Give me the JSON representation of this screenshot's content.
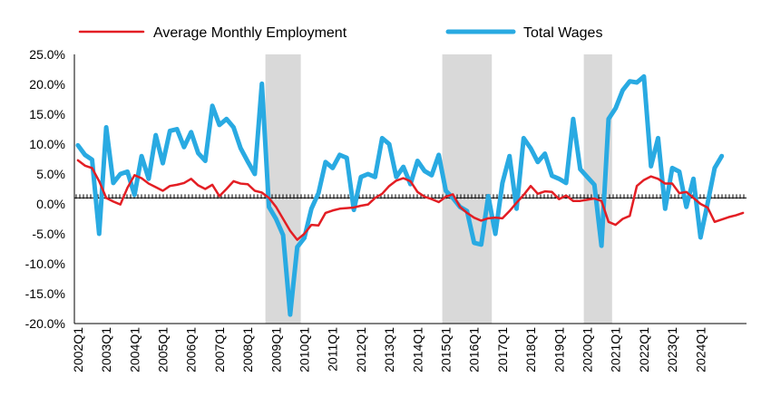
{
  "chart_data": {
    "type": "line",
    "title": "",
    "xlabel": "",
    "ylabel": "",
    "ylim": [
      -20,
      25
    ],
    "yticks": [
      -20,
      -15,
      -10,
      -5,
      0,
      5,
      10,
      15,
      20,
      25
    ],
    "ytick_labels": [
      "-20.0%",
      "-15.0%",
      "-10.0%",
      "-5.0%",
      "0.0%",
      "5.0%",
      "10.0%",
      "15.0%",
      "20.0%",
      "25.0%"
    ],
    "xtick_labels": [
      "2002Q1",
      "2003Q1",
      "2004Q1",
      "2005Q1",
      "2006Q1",
      "2007Q1",
      "2008Q1",
      "2009Q1",
      "2010Q1",
      "2011Q1",
      "2012Q1",
      "2013Q1",
      "2014Q1",
      "2015Q1",
      "2016Q1",
      "2017Q1",
      "2018Q1",
      "2019Q1",
      "2020Q1",
      "2021Q1",
      "2022Q1",
      "2023Q1",
      "2024Q1"
    ],
    "first_quarter": "2002Q1",
    "grid": false,
    "legend_position": "top",
    "reference_line": {
      "value": 1.0,
      "style": "dashed black with tick marks"
    },
    "shaded_periods": [
      {
        "start": "2008Q4",
        "end": "2009Q4"
      },
      {
        "start": "2015Q1",
        "end": "2016Q3"
      },
      {
        "start": "2020Q1",
        "end": "2020Q4"
      }
    ],
    "series": [
      {
        "name": "Average Monthly Employment",
        "color": "#E31E24",
        "values": [
          7.3,
          6.4,
          6.0,
          3.8,
          1.0,
          0.4,
          -0.1,
          2.7,
          4.8,
          4.3,
          3.4,
          2.8,
          2.2,
          3.0,
          3.2,
          3.5,
          4.2,
          3.1,
          2.5,
          3.2,
          1.3,
          2.5,
          3.8,
          3.4,
          3.3,
          2.2,
          1.9,
          1.0,
          -0.5,
          -2.5,
          -4.5,
          -6.0,
          -5.0,
          -3.5,
          -3.6,
          -1.5,
          -1.1,
          -0.8,
          -0.7,
          -0.6,
          -0.3,
          -0.1,
          1.0,
          1.7,
          3.0,
          3.9,
          4.3,
          3.8,
          2.0,
          1.2,
          0.8,
          0.3,
          1.2,
          1.6,
          -0.5,
          -1.5,
          -2.3,
          -2.8,
          -2.4,
          -2.3,
          -2.4,
          -1.2,
          0.2,
          1.5,
          3.0,
          1.7,
          2.1,
          2.0,
          0.8,
          1.4,
          0.5,
          0.5,
          0.7,
          0.9,
          0.5,
          -3.0,
          -3.5,
          -2.5,
          -2.0,
          3.0,
          4.0,
          4.6,
          4.2,
          3.4,
          3.4,
          1.8,
          2.0,
          1.0,
          0.0,
          -0.6,
          -3.0,
          -2.6,
          -2.2,
          -1.9,
          -1.5
        ]
      },
      {
        "name": "Total Wages",
        "color": "#29AAE2",
        "values": [
          9.8,
          8.2,
          7.4,
          -5.0,
          12.8,
          3.5,
          5.0,
          5.4,
          1.5,
          8.0,
          4.2,
          11.5,
          6.8,
          12.2,
          12.5,
          9.5,
          12.0,
          8.5,
          7.2,
          16.4,
          13.2,
          14.2,
          12.8,
          9.3,
          7.1,
          5.0,
          20.1,
          -0.5,
          -2.5,
          -5.2,
          -18.5,
          -7.2,
          -5.7,
          -0.8,
          1.8,
          7.0,
          6.0,
          8.2,
          7.7,
          -1.0,
          4.5,
          5.0,
          4.5,
          11.0,
          10.0,
          4.5,
          6.2,
          3.3,
          7.2,
          5.5,
          4.8,
          8.2,
          2.2,
          1.0,
          -0.5,
          -1.2,
          -6.5,
          -6.8,
          1.3,
          -5.0,
          3.5,
          8.0,
          -0.8,
          11.0,
          9.3,
          7.0,
          8.4,
          4.7,
          4.2,
          3.5,
          14.2,
          5.8,
          4.5,
          3.2,
          -7.0,
          14.2,
          16.0,
          19.0,
          20.5,
          20.3,
          21.3,
          6.3,
          11.0,
          -0.8,
          6.0,
          5.4,
          -0.5,
          4.2,
          -5.6,
          0.1,
          6.0,
          8.0
        ]
      }
    ]
  }
}
